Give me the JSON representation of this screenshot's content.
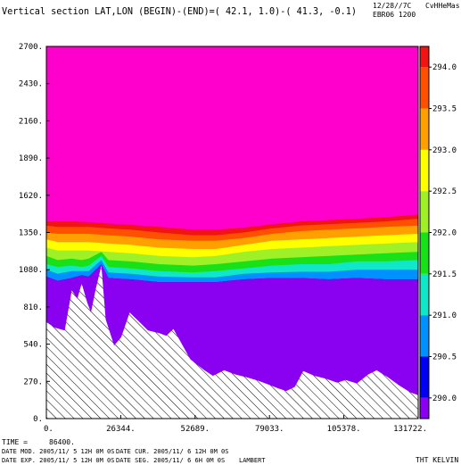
{
  "header": {
    "title": "Vertical section LAT,LON (BEGIN)-(END)=( 42.1,  1.0)-( 41.3, -0.1)",
    "date_stamp": "12/28//7C",
    "author": "CvHHeMas",
    "experiment": "EBR06 1200"
  },
  "footer": {
    "time_label": "TIME =",
    "time_value": "86400.",
    "date_mod": "DATE MOD. 2005/11/ 5   12H 0M 0S",
    "date_cur": "DATE CUR. 2005/11/ 6   12H 0M 0S",
    "date_exp": "DATE EXP. 2005/11/ 5   12H 0M 0S",
    "date_seg": "DATE SEG. 2005/11/ 6    6H 0M 0S",
    "projection": "LAMBERT",
    "variable": "THT KELVIN"
  },
  "chart_data": {
    "type": "heatmap",
    "xlim": [
      0,
      131722
    ],
    "ylim": [
      0,
      2700
    ],
    "x_ticks": [
      "0.",
      "26344.",
      "52689.",
      "79033.",
      "105378.",
      "131722."
    ],
    "x_tick_values": [
      0,
      26344,
      52689,
      79033,
      105378,
      131722
    ],
    "y_ticks": [
      "0.",
      "270.",
      "540.",
      "810.",
      "1080.",
      "1350.",
      "1620.",
      "1890.",
      "2160.",
      "2430.",
      "2700."
    ],
    "y_tick_values": [
      0,
      270,
      540,
      810,
      1080,
      1350,
      1620,
      1890,
      2160,
      2430,
      2700
    ],
    "colorbar": {
      "min": 289.75,
      "max": 294.25,
      "labels": [
        "290.0",
        "290.5",
        "291.0",
        "291.5",
        "292.0",
        "292.5",
        "293.0",
        "293.5",
        "294.0"
      ],
      "levels": [
        290.0,
        290.5,
        291.0,
        291.5,
        292.0,
        292.5,
        293.0,
        293.5,
        294.0
      ],
      "colors": [
        "#8a00f0",
        "#0000f0",
        "#0090ff",
        "#10e6c8",
        "#18e118",
        "#a0f028",
        "#ffff00",
        "#ffa000",
        "#ff5000",
        "#f01414",
        "#ff00cc"
      ]
    },
    "terrain_color": "#ffffff",
    "hatch_color": "#000000",
    "terrain": [
      [
        0,
        700
      ],
      [
        3000,
        660
      ],
      [
        6500,
        640
      ],
      [
        9000,
        930
      ],
      [
        11000,
        870
      ],
      [
        12500,
        980
      ],
      [
        14500,
        840
      ],
      [
        15800,
        770
      ],
      [
        17500,
        940
      ],
      [
        19500,
        1110
      ],
      [
        21000,
        720
      ],
      [
        24000,
        530
      ],
      [
        26500,
        590
      ],
      [
        29500,
        770
      ],
      [
        33000,
        700
      ],
      [
        36000,
        640
      ],
      [
        40000,
        620
      ],
      [
        42500,
        600
      ],
      [
        45000,
        650
      ],
      [
        48000,
        540
      ],
      [
        51000,
        430
      ],
      [
        56000,
        350
      ],
      [
        59000,
        310
      ],
      [
        63000,
        350
      ],
      [
        67000,
        320
      ],
      [
        71000,
        300
      ],
      [
        75000,
        275
      ],
      [
        79000,
        245
      ],
      [
        82000,
        220
      ],
      [
        85000,
        200
      ],
      [
        88000,
        230
      ],
      [
        91000,
        345
      ],
      [
        95000,
        310
      ],
      [
        99000,
        290
      ],
      [
        103000,
        260
      ],
      [
        106000,
        280
      ],
      [
        110000,
        255
      ],
      [
        114000,
        320
      ],
      [
        117000,
        350
      ],
      [
        121000,
        300
      ],
      [
        125000,
        240
      ],
      [
        129000,
        190
      ],
      [
        131722,
        170
      ]
    ],
    "bands": [
      {
        "value": 290.0,
        "points": [
          [
            0,
            1030
          ],
          [
            4000,
            1000
          ],
          [
            9000,
            1020
          ],
          [
            12500,
            1040
          ],
          [
            15000,
            1030
          ],
          [
            19500,
            1120
          ],
          [
            22000,
            1020
          ],
          [
            30000,
            1010
          ],
          [
            40000,
            990
          ],
          [
            52000,
            990
          ],
          [
            60000,
            990
          ],
          [
            70000,
            1010
          ],
          [
            80000,
            1020
          ],
          [
            90000,
            1020
          ],
          [
            100000,
            1010
          ],
          [
            110000,
            1020
          ],
          [
            120000,
            1010
          ],
          [
            131722,
            1010
          ]
        ]
      },
      {
        "value": 290.5,
        "points": [
          [
            0,
            1080
          ],
          [
            4000,
            1050
          ],
          [
            9000,
            1070
          ],
          [
            12500,
            1070
          ],
          [
            15000,
            1070
          ],
          [
            19500,
            1150
          ],
          [
            22000,
            1060
          ],
          [
            30000,
            1050
          ],
          [
            40000,
            1030
          ],
          [
            52000,
            1025
          ],
          [
            60000,
            1025
          ],
          [
            70000,
            1050
          ],
          [
            80000,
            1060
          ],
          [
            90000,
            1065
          ],
          [
            100000,
            1065
          ],
          [
            110000,
            1080
          ],
          [
            120000,
            1080
          ],
          [
            131722,
            1080
          ]
        ]
      },
      {
        "value": 291.0,
        "points": [
          [
            0,
            1120
          ],
          [
            4000,
            1100
          ],
          [
            9000,
            1110
          ],
          [
            12500,
            1100
          ],
          [
            15000,
            1110
          ],
          [
            19500,
            1180
          ],
          [
            22000,
            1100
          ],
          [
            30000,
            1090
          ],
          [
            40000,
            1070
          ],
          [
            52000,
            1060
          ],
          [
            60000,
            1070
          ],
          [
            70000,
            1090
          ],
          [
            80000,
            1110
          ],
          [
            90000,
            1120
          ],
          [
            100000,
            1120
          ],
          [
            110000,
            1140
          ],
          [
            120000,
            1140
          ],
          [
            131722,
            1150
          ]
        ]
      },
      {
        "value": 291.5,
        "points": [
          [
            0,
            1180
          ],
          [
            4000,
            1150
          ],
          [
            9000,
            1160
          ],
          [
            12500,
            1150
          ],
          [
            15000,
            1160
          ],
          [
            19500,
            1210
          ],
          [
            22000,
            1150
          ],
          [
            30000,
            1140
          ],
          [
            40000,
            1120
          ],
          [
            52000,
            1110
          ],
          [
            60000,
            1120
          ],
          [
            70000,
            1140
          ],
          [
            80000,
            1160
          ],
          [
            90000,
            1170
          ],
          [
            100000,
            1180
          ],
          [
            110000,
            1190
          ],
          [
            120000,
            1200
          ],
          [
            131722,
            1210
          ]
        ]
      },
      {
        "value": 292.0,
        "points": [
          [
            0,
            1240
          ],
          [
            4000,
            1220
          ],
          [
            9000,
            1220
          ],
          [
            15000,
            1220
          ],
          [
            22000,
            1210
          ],
          [
            30000,
            1200
          ],
          [
            40000,
            1180
          ],
          [
            52000,
            1170
          ],
          [
            60000,
            1180
          ],
          [
            70000,
            1210
          ],
          [
            80000,
            1230
          ],
          [
            90000,
            1240
          ],
          [
            100000,
            1250
          ],
          [
            110000,
            1260
          ],
          [
            120000,
            1270
          ],
          [
            131722,
            1280
          ]
        ]
      },
      {
        "value": 292.5,
        "points": [
          [
            0,
            1300
          ],
          [
            4000,
            1280
          ],
          [
            9000,
            1280
          ],
          [
            15000,
            1280
          ],
          [
            22000,
            1270
          ],
          [
            30000,
            1260
          ],
          [
            40000,
            1240
          ],
          [
            52000,
            1230
          ],
          [
            60000,
            1230
          ],
          [
            70000,
            1260
          ],
          [
            80000,
            1290
          ],
          [
            90000,
            1300
          ],
          [
            100000,
            1310
          ],
          [
            110000,
            1320
          ],
          [
            120000,
            1330
          ],
          [
            131722,
            1340
          ]
        ]
      },
      {
        "value": 293.0,
        "points": [
          [
            0,
            1350
          ],
          [
            4000,
            1340
          ],
          [
            9000,
            1340
          ],
          [
            15000,
            1340
          ],
          [
            22000,
            1330
          ],
          [
            30000,
            1320
          ],
          [
            40000,
            1300
          ],
          [
            52000,
            1290
          ],
          [
            60000,
            1290
          ],
          [
            70000,
            1310
          ],
          [
            80000,
            1340
          ],
          [
            90000,
            1360
          ],
          [
            100000,
            1370
          ],
          [
            110000,
            1380
          ],
          [
            120000,
            1390
          ],
          [
            131722,
            1400
          ]
        ]
      },
      {
        "value": 293.5,
        "points": [
          [
            0,
            1400
          ],
          [
            4000,
            1390
          ],
          [
            9000,
            1390
          ],
          [
            15000,
            1390
          ],
          [
            22000,
            1380
          ],
          [
            30000,
            1370
          ],
          [
            40000,
            1350
          ],
          [
            52000,
            1330
          ],
          [
            60000,
            1330
          ],
          [
            70000,
            1350
          ],
          [
            80000,
            1380
          ],
          [
            90000,
            1400
          ],
          [
            100000,
            1410
          ],
          [
            110000,
            1420
          ],
          [
            120000,
            1430
          ],
          [
            131722,
            1450
          ]
        ]
      },
      {
        "value": 294.0,
        "points": [
          [
            0,
            1430
          ],
          [
            4000,
            1430
          ],
          [
            9000,
            1430
          ],
          [
            15000,
            1425
          ],
          [
            22000,
            1415
          ],
          [
            30000,
            1405
          ],
          [
            40000,
            1390
          ],
          [
            52000,
            1370
          ],
          [
            60000,
            1370
          ],
          [
            70000,
            1385
          ],
          [
            80000,
            1410
          ],
          [
            90000,
            1430
          ],
          [
            100000,
            1440
          ],
          [
            110000,
            1450
          ],
          [
            120000,
            1460
          ],
          [
            131722,
            1480
          ]
        ]
      }
    ]
  }
}
